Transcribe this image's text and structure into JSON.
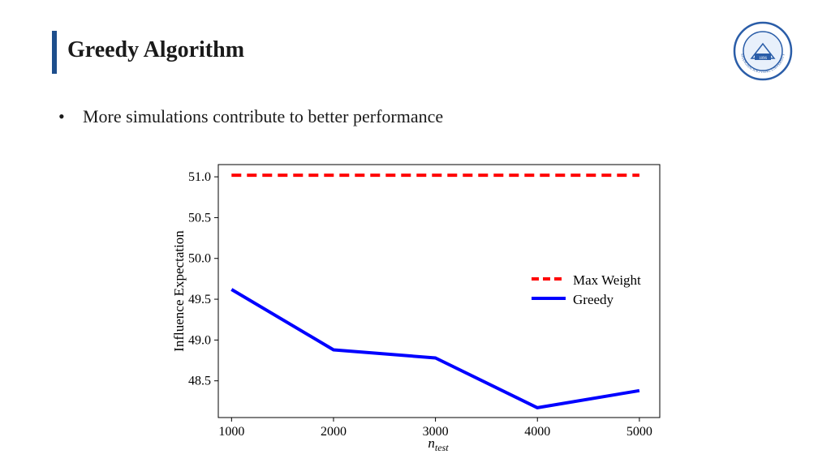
{
  "slide": {
    "title": "Greedy Algorithm",
    "bullet": "More simulations contribute to better performance",
    "accent_color": "#1d4e8c"
  },
  "logo": {
    "name": "Shanghai Jiao Tong University seal",
    "text": "SHANGHAI JIAO TONG UNIVERSITY",
    "year": "1896"
  },
  "chart_data": {
    "type": "line",
    "title": "",
    "xlabel": "n",
    "xlabel_subscript": "test",
    "ylabel": "Influence Expectation",
    "x": [
      1000,
      2000,
      3000,
      4000,
      5000
    ],
    "xticks": [
      "1000",
      "2000",
      "3000",
      "4000",
      "5000"
    ],
    "yticks": [
      "48.5",
      "49.0",
      "49.5",
      "50.0",
      "50.5",
      "51.0"
    ],
    "xlim": [
      870,
      5200
    ],
    "ylim": [
      48.05,
      51.15
    ],
    "legend_position": "center-right",
    "series": [
      {
        "name": "Max Weight",
        "values": [
          51.02,
          51.02,
          51.02,
          51.02,
          51.02
        ],
        "color": "#ff0000",
        "style": "dashed"
      },
      {
        "name": "Greedy",
        "values": [
          49.62,
          48.88,
          48.78,
          48.17,
          48.38
        ],
        "color": "#0000ff",
        "style": "solid"
      }
    ]
  }
}
